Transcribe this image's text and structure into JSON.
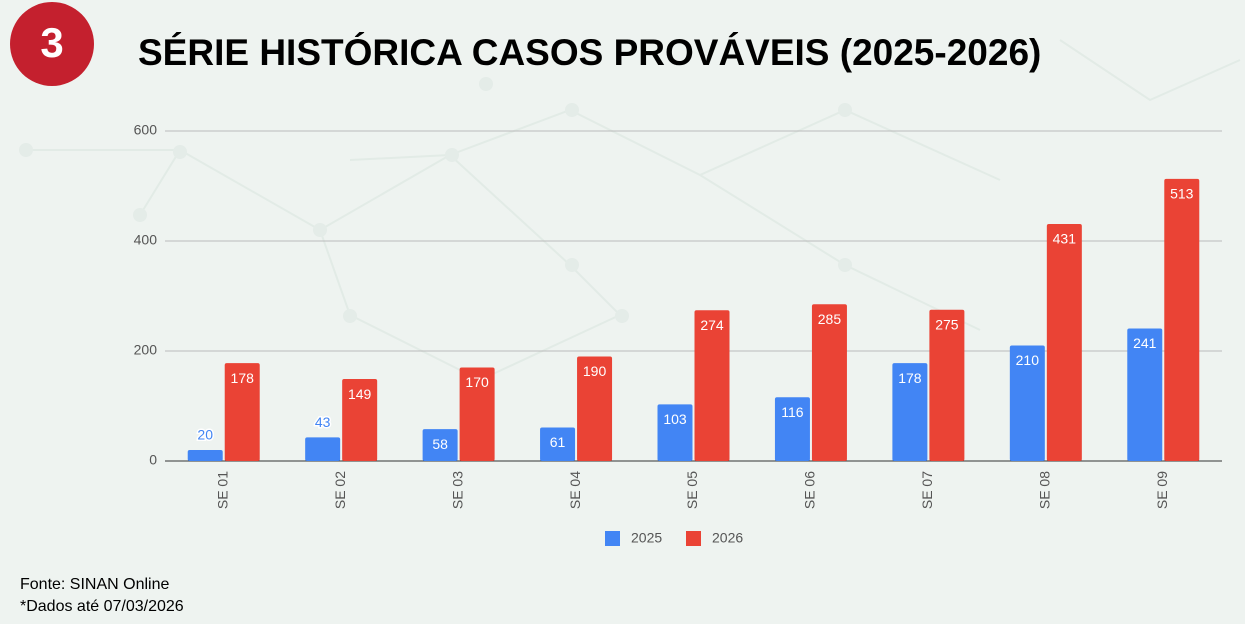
{
  "slide": {
    "badge": "3",
    "footnotes": [
      "Fonte: SINAN Online",
      "*Dados até 07/03/2026"
    ]
  },
  "chart_data": {
    "type": "bar",
    "title": "SÉRIE HISTÓRICA CASOS PROVÁVEIS (2025-2026)",
    "categories": [
      "SE 01",
      "SE 02",
      "SE 03",
      "SE 04",
      "SE 05",
      "SE 06",
      "SE 07",
      "SE 08",
      "SE 09"
    ],
    "series": [
      {
        "name": "2025",
        "color": "#4285f4",
        "values": [
          20,
          43,
          58,
          61,
          103,
          116,
          178,
          210,
          241
        ]
      },
      {
        "name": "2026",
        "color": "#ea4335",
        "values": [
          178,
          149,
          170,
          190,
          274,
          285,
          275,
          431,
          513
        ]
      }
    ],
    "ylim": [
      0,
      600
    ],
    "yticks": [
      0,
      200,
      400,
      600
    ],
    "grid": true,
    "legend": "bottom"
  }
}
